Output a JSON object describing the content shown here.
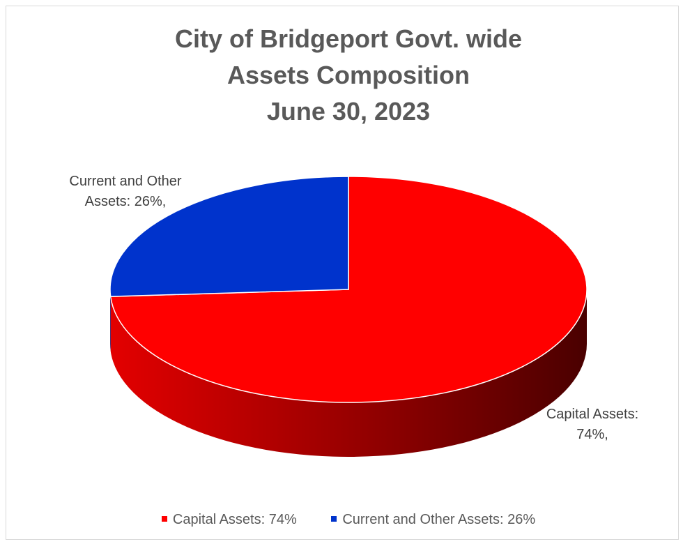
{
  "chart_data": {
    "type": "pie",
    "title_lines": [
      "City of Bridgeport Govt. wide",
      "Assets Composition",
      "June 30, 2023"
    ],
    "slices": [
      {
        "name": "Capital Assets",
        "value": 74,
        "color": "#ff0000",
        "data_label_lines": [
          "Capital Assets:",
          "74%,"
        ],
        "legend_label": "Capital Assets: 74%"
      },
      {
        "name": "Current and Other Assets",
        "value": 26,
        "color": "#0033cc",
        "data_label_lines": [
          "Current and Other",
          "Assets: 26%,"
        ],
        "legend_label": "Current and Other Assets: 26%"
      }
    ],
    "legend_position": "bottom",
    "style": "3d"
  }
}
